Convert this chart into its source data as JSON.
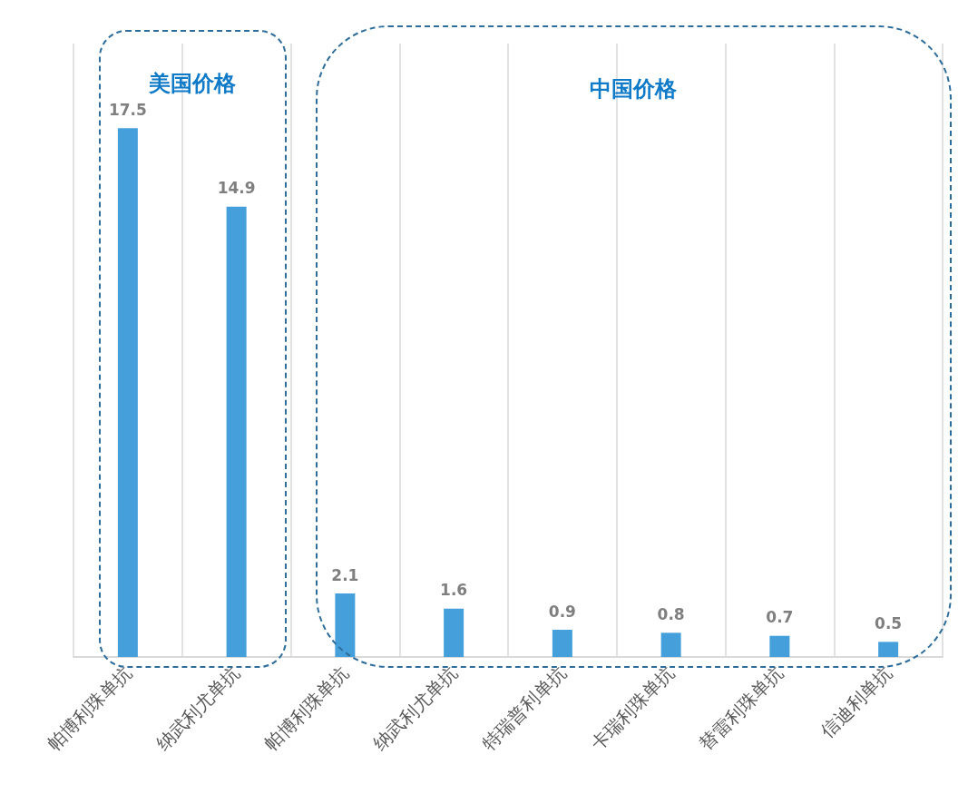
{
  "chart_data": {
    "type": "bar",
    "categories": [
      "帕博利珠单抗",
      "纳武利尤单抗",
      "帕博利珠单抗",
      "纳武利尤单抗",
      "特瑞普利单抗",
      "卡瑞利珠单抗",
      "替雷利珠单抗",
      "信迪利单抗"
    ],
    "values": [
      17.5,
      14.9,
      2.1,
      1.6,
      0.9,
      0.8,
      0.7,
      0.5
    ],
    "color": "#449fdb",
    "data_labels": true,
    "grid": "x",
    "annotations": [
      "美国价格",
      "中国价格"
    ]
  }
}
